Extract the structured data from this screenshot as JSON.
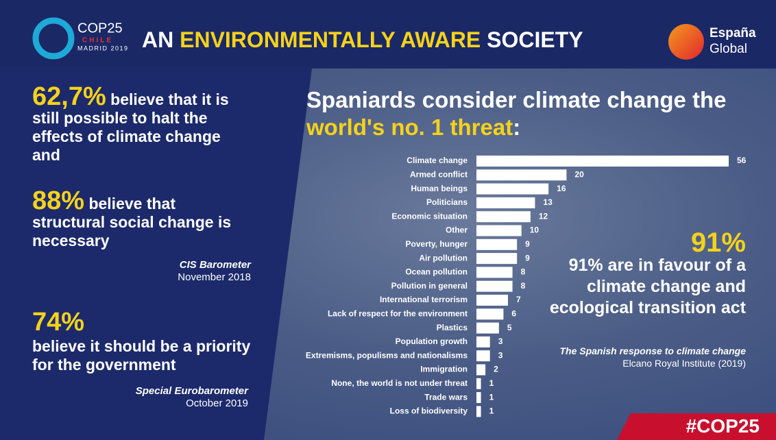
{
  "header": {
    "title_start": "AN ",
    "title_highlight": "ENVIRONMENTALLY AWARE",
    "title_end": " SOCIETY",
    "logo_left": {
      "name": "COP25",
      "country": "CHILE",
      "place": "MADRID 2019"
    },
    "logo_right": {
      "line1": "España",
      "line2": "Global"
    }
  },
  "left_panel": {
    "stats": [
      {
        "figure": "62,7%",
        "text": " believe that it is still possible to halt the effects of climate change and"
      },
      {
        "figure": "88%",
        "text": " believe that structural social change is necessary",
        "source": "CIS Barometer",
        "date": "November 2018"
      },
      {
        "figure": "74%",
        "text": "believe it should be a priority for the government",
        "source": "Special Eurobarometer",
        "date": "October 2019"
      }
    ]
  },
  "right_panel": {
    "figure": "91%",
    "text": "91% are in favour of a climate change and ecological transition act",
    "source": "The Spanish response to climate change",
    "source_detail": "Elcano Royal Institute (2019)"
  },
  "hashtag": "#COP25",
  "chart_data": {
    "type": "bar",
    "orientation": "horizontal",
    "title_line1": "Spaniards consider climate change the",
    "title_highlight": "world's no. 1 threat",
    "title_end": ":",
    "categories": [
      "Climate change",
      "Armed conflict",
      "Human beings",
      "Politicians",
      "Economic situation",
      "Other",
      "Poverty, hunger",
      "Air pollution",
      "Ocean pollution",
      "Pollution in general",
      "International terrorism",
      "Lack of respect for the environment",
      "Plastics",
      "Population growth",
      "Extremisms, populisms and nationalisms",
      "Immigration",
      "None, the world is not under threat",
      "Trade wars",
      "Loss of biodiversity"
    ],
    "values": [
      56,
      20,
      16,
      13,
      12,
      10,
      9,
      9,
      8,
      8,
      7,
      6,
      5,
      3,
      3,
      2,
      1,
      1,
      1
    ],
    "color": "#ffffff"
  }
}
